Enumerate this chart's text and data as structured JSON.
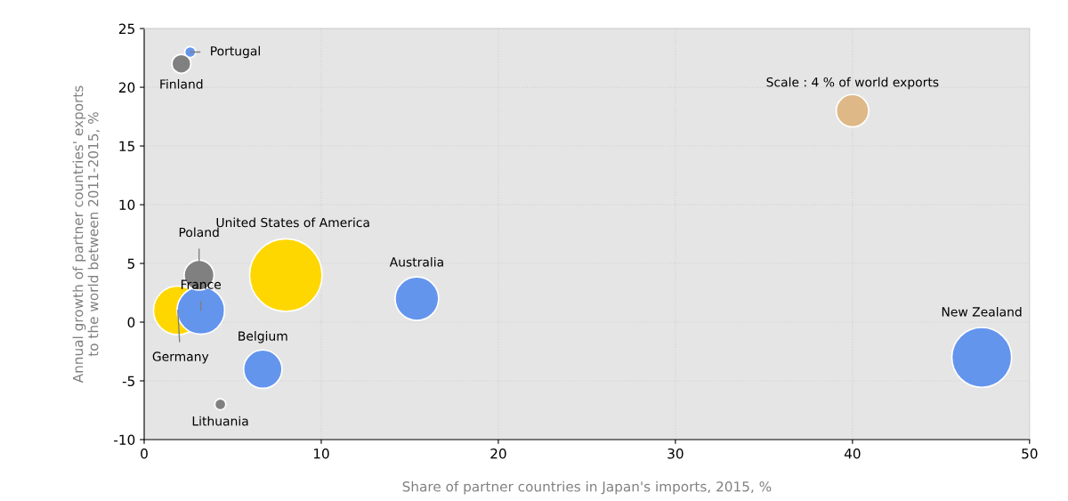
{
  "chart_data": {
    "type": "bubble",
    "xlabel": "Share of partner countries in Japan's imports, 2015, %",
    "ylabel": "Annual growth of partner countries' exports\nto the world between 2011-2015, %",
    "series": [
      {
        "x": [
          2.6,
          2.1,
          1.9,
          3.2,
          3.1,
          8.0,
          6.7,
          4.3,
          15.4,
          47.3
        ],
        "values": [
          23,
          22,
          1,
          1,
          4,
          4,
          -4,
          -7,
          2,
          -3
        ],
        "sizes": [
          0.023,
          0.068,
          0.45,
          0.43,
          0.17,
          1,
          0.28,
          0.023,
          0.36,
          0.68
        ],
        "colors": [
          "#6495ed",
          "#808080",
          "#ffd700",
          "#6495ed",
          "#808080",
          "#ffd700",
          "#6495ed",
          "#808080",
          "#6495ed",
          "#6495ed"
        ]
      },
      {
        "x": [
          40
        ],
        "values": [
          18
        ],
        "sizes": [
          0.2
        ],
        "colors": [
          "#deb887"
        ]
      }
    ],
    "annotations": [
      {
        "text": "Portugal",
        "x": 2.6,
        "y": 23
      },
      {
        "text": "Finland",
        "x": 2.1,
        "y": 22
      },
      {
        "text": "Germany",
        "x": 1.9,
        "y": 1
      },
      {
        "text": "Poland",
        "x": 3.1,
        "y": 4
      },
      {
        "text": "France",
        "x": 3.2,
        "y": 1
      },
      "United States of America",
      {
        "text": "Belgium",
        "x": 6.7,
        "y": -4
      },
      {
        "text": "Lithuania",
        "x": 4.3,
        "y": -7
      },
      {
        "text": "Australia",
        "x": 15.4,
        "y": 2
      },
      "New Zealand",
      {
        "text": "Scale : 4 % of world exports",
        "x": 40,
        "y": 18
      }
    ],
    "xlim": [
      0,
      50
    ],
    "xticks": [
      0,
      10,
      20,
      30,
      40,
      50
    ],
    "ylim": [
      -10,
      25
    ],
    "yticks": [
      -10,
      -5,
      0,
      5,
      10,
      15,
      20,
      25
    ],
    "grid": true
  }
}
